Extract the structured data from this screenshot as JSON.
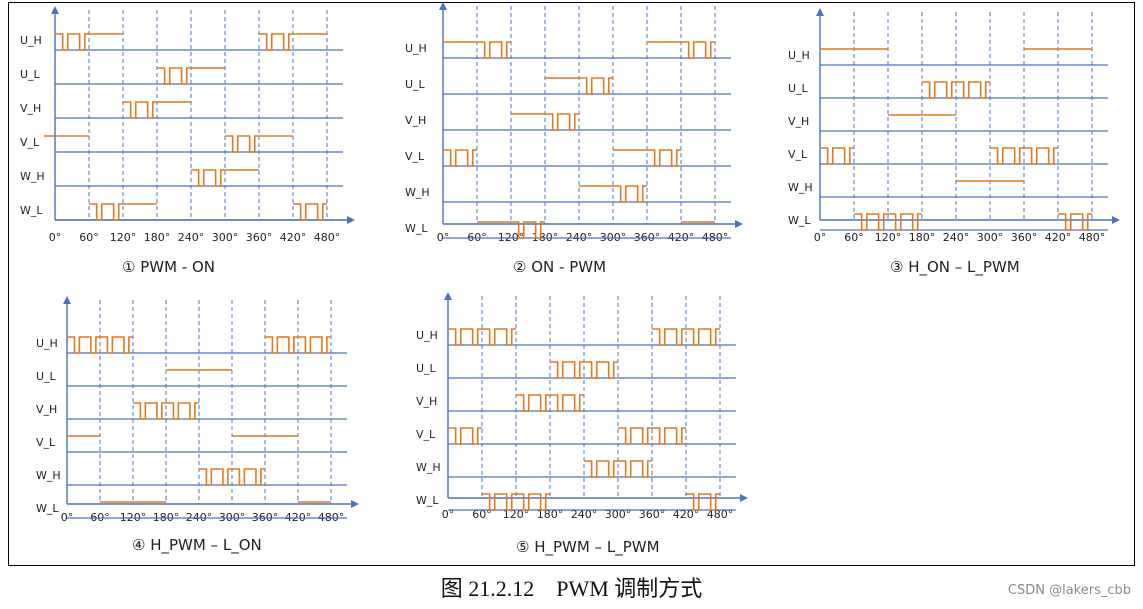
{
  "caption": "图 21.2.12　PWM 调制方式",
  "watermark": "CSDN @lakers_cbb",
  "chart_data": [
    {
      "type": "timing-diagram",
      "title": "① PWM - ON",
      "rows": [
        "U_H",
        "U_L",
        "V_H",
        "V_L",
        "W_H",
        "W_L"
      ],
      "x_ticks": [
        "0°",
        "60°",
        "120°",
        "180°",
        "240°",
        "300°",
        "360°",
        "420°",
        "480°"
      ],
      "signals": {
        "U_H": [
          {
            "from": 0,
            "to": 60,
            "mode": "pwm",
            "pulses": 2
          },
          {
            "from": 60,
            "to": 120,
            "mode": "on"
          },
          {
            "from": 360,
            "to": 420,
            "mode": "pwm",
            "pulses": 2
          },
          {
            "from": 420,
            "to": 480,
            "mode": "on"
          }
        ],
        "U_L": [
          {
            "from": 180,
            "to": 240,
            "mode": "pwm",
            "pulses": 2
          },
          {
            "from": 240,
            "to": 300,
            "mode": "on"
          }
        ],
        "V_H": [
          {
            "from": 120,
            "to": 180,
            "mode": "pwm",
            "pulses": 2
          },
          {
            "from": 180,
            "to": 240,
            "mode": "on"
          }
        ],
        "V_L": [
          {
            "from": -20,
            "to": 60,
            "mode": "on"
          },
          {
            "from": 300,
            "to": 360,
            "mode": "pwm",
            "pulses": 2
          },
          {
            "from": 360,
            "to": 420,
            "mode": "on"
          }
        ],
        "W_H": [
          {
            "from": 240,
            "to": 300,
            "mode": "pwm",
            "pulses": 2
          },
          {
            "from": 300,
            "to": 360,
            "mode": "on"
          }
        ],
        "W_L": [
          {
            "from": 60,
            "to": 120,
            "mode": "pwm",
            "pulses": 2
          },
          {
            "from": 120,
            "to": 180,
            "mode": "on"
          },
          {
            "from": 420,
            "to": 480,
            "mode": "pwm",
            "pulses": 2
          }
        ]
      }
    },
    {
      "type": "timing-diagram",
      "title": "② ON - PWM",
      "rows": [
        "U_H",
        "U_L",
        "V_H",
        "V_L",
        "W_H",
        "W_L"
      ],
      "x_ticks": [
        "0°",
        "60°",
        "120°",
        "180°",
        "240°",
        "300°",
        "360°",
        "420°",
        "480°"
      ],
      "signals": {
        "U_H": [
          {
            "from": 0,
            "to": 60,
            "mode": "on"
          },
          {
            "from": 60,
            "to": 120,
            "mode": "pwm",
            "pulses": 2
          },
          {
            "from": 360,
            "to": 420,
            "mode": "on"
          },
          {
            "from": 420,
            "to": 480,
            "mode": "pwm",
            "pulses": 2
          }
        ],
        "U_L": [
          {
            "from": 180,
            "to": 240,
            "mode": "on"
          },
          {
            "from": 240,
            "to": 300,
            "mode": "pwm",
            "pulses": 2
          }
        ],
        "V_H": [
          {
            "from": 120,
            "to": 180,
            "mode": "on"
          },
          {
            "from": 180,
            "to": 240,
            "mode": "pwm",
            "pulses": 2
          }
        ],
        "V_L": [
          {
            "from": 0,
            "to": 60,
            "mode": "pwm",
            "pulses": 2
          },
          {
            "from": 300,
            "to": 360,
            "mode": "on"
          },
          {
            "from": 360,
            "to": 420,
            "mode": "pwm",
            "pulses": 2
          }
        ],
        "W_H": [
          {
            "from": 240,
            "to": 300,
            "mode": "on"
          },
          {
            "from": 300,
            "to": 360,
            "mode": "pwm",
            "pulses": 2
          }
        ],
        "W_L": [
          {
            "from": 60,
            "to": 120,
            "mode": "on"
          },
          {
            "from": 120,
            "to": 180,
            "mode": "pwm",
            "pulses": 2
          },
          {
            "from": 420,
            "to": 480,
            "mode": "on"
          }
        ]
      }
    },
    {
      "type": "timing-diagram",
      "title": "③ H_ON – L_PWM",
      "rows": [
        "U_H",
        "U_L",
        "V_H",
        "V_L",
        "W_H",
        "W_L"
      ],
      "x_ticks": [
        "0°",
        "60°",
        "120°",
        "180°",
        "240°",
        "300°",
        "360°",
        "420°",
        "480°"
      ],
      "signals": {
        "U_H": [
          {
            "from": 0,
            "to": 120,
            "mode": "on"
          },
          {
            "from": 360,
            "to": 480,
            "mode": "on"
          }
        ],
        "U_L": [
          {
            "from": 180,
            "to": 300,
            "mode": "pwm",
            "pulses": 4
          }
        ],
        "V_H": [
          {
            "from": 120,
            "to": 240,
            "mode": "on"
          }
        ],
        "V_L": [
          {
            "from": 0,
            "to": 60,
            "mode": "pwm",
            "pulses": 2
          },
          {
            "from": 300,
            "to": 420,
            "mode": "pwm",
            "pulses": 4
          }
        ],
        "W_H": [
          {
            "from": 240,
            "to": 360,
            "mode": "on"
          }
        ],
        "W_L": [
          {
            "from": 60,
            "to": 180,
            "mode": "pwm",
            "pulses": 4
          },
          {
            "from": 420,
            "to": 480,
            "mode": "pwm",
            "pulses": 2
          }
        ]
      }
    },
    {
      "type": "timing-diagram",
      "title": "④ H_PWM – L_ON",
      "rows": [
        "U_H",
        "U_L",
        "V_H",
        "V_L",
        "W_H",
        "W_L"
      ],
      "x_ticks": [
        "0°",
        "60°",
        "120°",
        "180°",
        "240°",
        "300°",
        "360°",
        "420°",
        "480°"
      ],
      "signals": {
        "U_H": [
          {
            "from": 0,
            "to": 120,
            "mode": "pwm",
            "pulses": 4
          },
          {
            "from": 360,
            "to": 480,
            "mode": "pwm",
            "pulses": 4
          }
        ],
        "U_L": [
          {
            "from": 180,
            "to": 300,
            "mode": "on"
          }
        ],
        "V_H": [
          {
            "from": 120,
            "to": 240,
            "mode": "pwm",
            "pulses": 4
          }
        ],
        "V_L": [
          {
            "from": 0,
            "to": 60,
            "mode": "on"
          },
          {
            "from": 300,
            "to": 420,
            "mode": "on"
          }
        ],
        "W_H": [
          {
            "from": 240,
            "to": 360,
            "mode": "pwm",
            "pulses": 4
          }
        ],
        "W_L": [
          {
            "from": 60,
            "to": 180,
            "mode": "on"
          },
          {
            "from": 420,
            "to": 480,
            "mode": "on"
          }
        ]
      }
    },
    {
      "type": "timing-diagram",
      "title": "⑤ H_PWM – L_PWM",
      "rows": [
        "U_H",
        "U_L",
        "V_H",
        "V_L",
        "W_H",
        "W_L"
      ],
      "x_ticks": [
        "0°",
        "60°",
        "120°",
        "180°",
        "240°",
        "300°",
        "360°",
        "420°",
        "480°"
      ],
      "signals": {
        "U_H": [
          {
            "from": 0,
            "to": 120,
            "mode": "pwm",
            "pulses": 4
          },
          {
            "from": 360,
            "to": 480,
            "mode": "pwm",
            "pulses": 4
          }
        ],
        "U_L": [
          {
            "from": 180,
            "to": 300,
            "mode": "pwm",
            "pulses": 4
          }
        ],
        "V_H": [
          {
            "from": 120,
            "to": 240,
            "mode": "pwm",
            "pulses": 4
          }
        ],
        "V_L": [
          {
            "from": 0,
            "to": 60,
            "mode": "pwm",
            "pulses": 2
          },
          {
            "from": 300,
            "to": 420,
            "mode": "pwm",
            "pulses": 4
          }
        ],
        "W_H": [
          {
            "from": 240,
            "to": 360,
            "mode": "pwm",
            "pulses": 4
          }
        ],
        "W_L": [
          {
            "from": 60,
            "to": 180,
            "mode": "pwm",
            "pulses": 4
          },
          {
            "from": 420,
            "to": 480,
            "mode": "pwm",
            "pulses": 2
          }
        ]
      }
    }
  ],
  "colors": {
    "signal": "#e07a1f",
    "baseline": "#4a72c4",
    "grid": "#4a72c4",
    "axis": "#4a72c4"
  }
}
